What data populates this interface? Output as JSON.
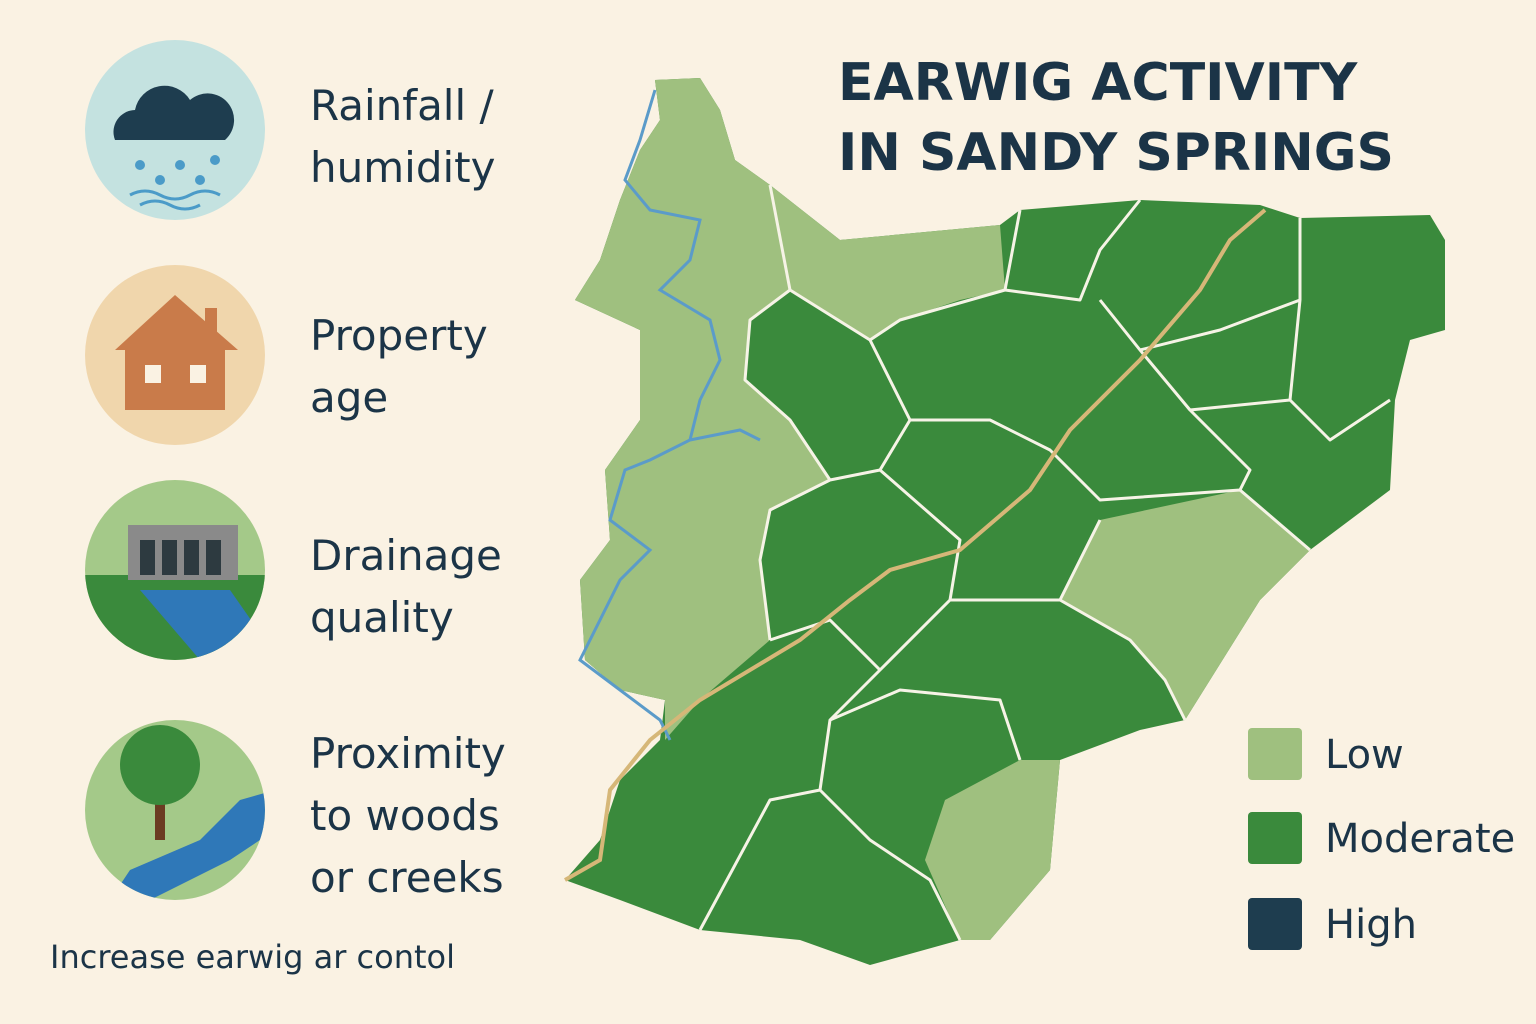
{
  "title": {
    "lines": [
      "EARWIG ACTIVITY",
      "IN SANDY SPRINGS"
    ]
  },
  "factors": [
    {
      "lines": [
        "Rainfall /",
        "humidity"
      ]
    },
    {
      "lines": [
        "Property",
        "age"
      ]
    },
    {
      "lines": [
        "Drainage",
        "quality"
      ]
    },
    {
      "lines": [
        "Proximity",
        "to woods",
        "or creeks"
      ]
    }
  ],
  "legend": [
    {
      "label": "Low"
    },
    {
      "label": "Moderate"
    },
    {
      "label": "High"
    }
  ],
  "footer": "Increase earwig ar contol"
}
